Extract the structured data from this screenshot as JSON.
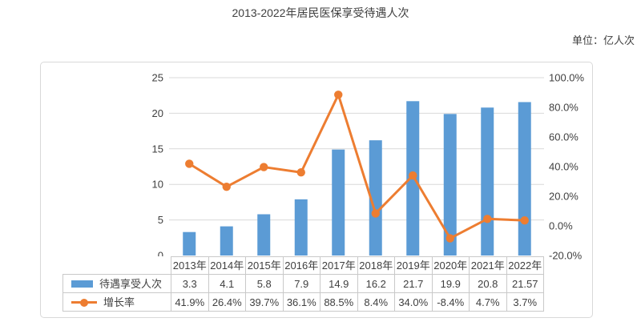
{
  "page": {
    "title": "2013-2022年居民医保享受待遇人次",
    "unit_label": "单位：亿人次"
  },
  "chart_data": {
    "type": "bar+line combo with data table",
    "title": "2013-2022年居民医保享受待遇人次",
    "unit": "亿人次",
    "categories": [
      "2013年",
      "2014年",
      "2015年",
      "2016年",
      "2017年",
      "2018年",
      "2019年",
      "2020年",
      "2021年",
      "2022年"
    ],
    "series": [
      {
        "name": "待遇享受人次",
        "type": "bar",
        "axis": "left",
        "color": "#5B9BD5",
        "values": [
          3.3,
          4.1,
          5.8,
          7.9,
          14.9,
          16.2,
          21.7,
          19.9,
          20.8,
          21.57
        ],
        "labels": [
          "3.3",
          "4.1",
          "5.8",
          "7.9",
          "14.9",
          "16.2",
          "21.7",
          "19.9",
          "20.8",
          "21.57"
        ]
      },
      {
        "name": "增长率",
        "type": "line",
        "axis": "right",
        "color": "#ED7D31",
        "values": [
          41.9,
          26.4,
          39.7,
          36.1,
          88.5,
          8.4,
          34.0,
          -8.4,
          4.7,
          3.7
        ],
        "labels": [
          "41.9%",
          "26.4%",
          "39.7%",
          "36.1%",
          "88.5%",
          "8.4%",
          "34.0%",
          "-8.4%",
          "4.7%",
          "3.7%"
        ]
      }
    ],
    "left_axis": {
      "min": 0,
      "max": 25,
      "tick_values": [
        0,
        5,
        10,
        15,
        20,
        25
      ],
      "tick_labels": [
        "0",
        "5",
        "10",
        "15",
        "20",
        "25"
      ]
    },
    "right_axis": {
      "min": -20,
      "max": 100,
      "tick_values": [
        -20,
        0,
        20,
        40,
        60,
        80,
        100
      ],
      "tick_labels": [
        "-20.0%",
        "0.0%",
        "20.0%",
        "40.0%",
        "60.0%",
        "80.0%",
        "100.0%"
      ]
    },
    "grid": true,
    "legend_position": "table-left",
    "colors": {
      "grid": "#d9d9d9",
      "text": "#3f3f3f",
      "table_border": "#c9c9c9",
      "frame_border": "#d9d9d9"
    }
  }
}
